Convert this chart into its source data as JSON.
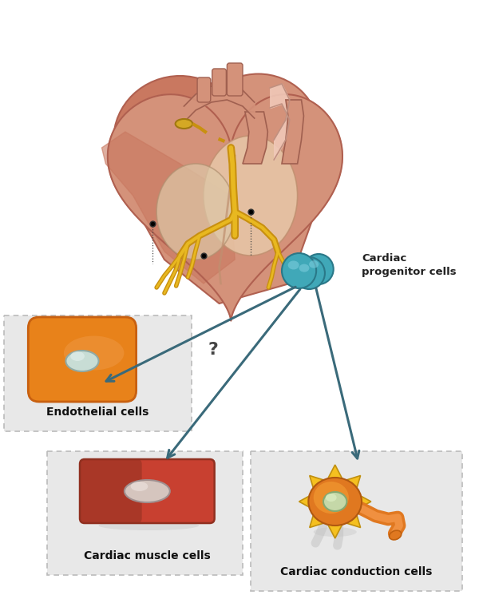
{
  "bg_color": "#ffffff",
  "heart_outer_color": "#c97860",
  "heart_mid_color": "#d4927a",
  "heart_inner_color": "#e8c8a8",
  "heart_chamber_color": "#f0d8c0",
  "vessel_color": "#d4927a",
  "vessel_light": "#f0c8b8",
  "arrow_color": "#3a6a7a",
  "box_bg": "#e0e0e0",
  "box_border": "#aaaaaa",
  "label_endothelial": "Endothelial cells",
  "label_muscle": "Cardiac muscle cells",
  "label_conduction": "Cardiac conduction cells",
  "label_progenitor": "Cardiac\nprogenitor cells",
  "label_question": "?",
  "endothelial_color": "#e8821a",
  "endothelial_dark": "#c86010",
  "endothelial_nucleus": "#d4e8e0",
  "muscle_color": "#c84030",
  "muscle_dark": "#903020",
  "muscle_nucleus": "#d8c8c0",
  "conduction_yellow": "#f5c020",
  "conduction_orange": "#e07820",
  "conduction_nucleus": "#c8d8b0",
  "progenitor_color": "#40a8b8",
  "progenitor_dark": "#2a7888",
  "progenitor_highlight": "#80d0e0",
  "sa_node_color": "#d4a020",
  "conduction_line": "#c89010",
  "conduction_line_light": "#e8b820",
  "figsize": [
    6.0,
    7.55
  ],
  "dpi": 100
}
